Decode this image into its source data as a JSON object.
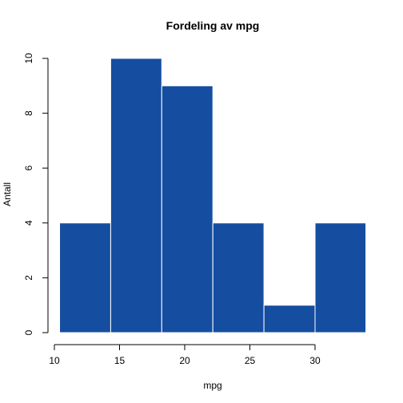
{
  "chart_data": {
    "type": "bar",
    "title": "Fordeling av mpg",
    "xlabel": "mpg",
    "ylabel": "Antall",
    "bar_color": "#154ea1",
    "bar_border_color": "#ffffff",
    "bins": [
      {
        "start": 10.4,
        "end": 14.32,
        "count": 4
      },
      {
        "start": 14.32,
        "end": 18.24,
        "count": 10
      },
      {
        "start": 18.24,
        "end": 22.16,
        "count": 9
      },
      {
        "start": 22.16,
        "end": 26.08,
        "count": 4
      },
      {
        "start": 26.08,
        "end": 30.0,
        "count": 1
      },
      {
        "start": 30.0,
        "end": 33.9,
        "count": 4
      }
    ],
    "x_ticks": [
      10,
      15,
      20,
      25,
      30
    ],
    "y_ticks": [
      0,
      2,
      4,
      6,
      8,
      10
    ],
    "xlim": [
      10,
      33.9
    ],
    "ylim": [
      0,
      10
    ],
    "grid": false,
    "legend": "none"
  }
}
